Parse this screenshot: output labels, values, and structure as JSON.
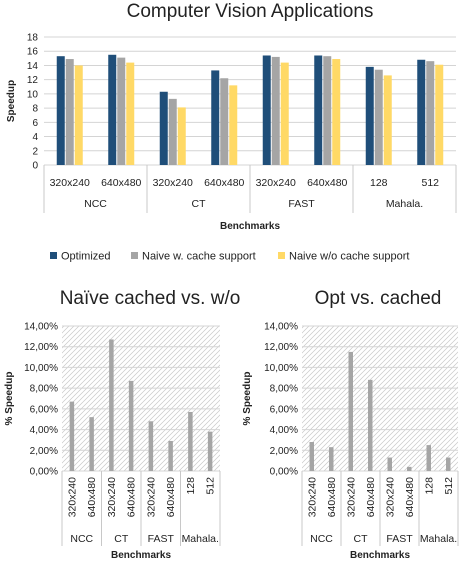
{
  "chart_data": [
    {
      "type": "bar",
      "title": "Computer Vision Applications",
      "xlabel": "Benchmarks",
      "ylabel": "Speedup",
      "ylim": [
        0,
        18
      ],
      "yticks": [
        "0",
        "2",
        "4",
        "6",
        "8",
        "10",
        "12",
        "14",
        "16",
        "18"
      ],
      "grid": true,
      "legend": "bottom",
      "groups": [
        "NCC",
        "CT",
        "FAST",
        "Mahala."
      ],
      "categories": [
        "320x240",
        "640x480",
        "320x240",
        "640x480",
        "320x240",
        "640x480",
        "128",
        "512"
      ],
      "series": [
        {
          "name": "Optimized",
          "color": "#1f4e79",
          "values": [
            15.3,
            15.5,
            10.3,
            13.3,
            15.4,
            15.4,
            13.8,
            14.8
          ]
        },
        {
          "name": "Naive w. cache support",
          "color": "#a5a5a5",
          "values": [
            14.9,
            15.1,
            9.3,
            12.2,
            15.2,
            15.3,
            13.4,
            14.6
          ]
        },
        {
          "name": "Naive w/o cache support",
          "color": "#ffd966",
          "values": [
            14.0,
            14.4,
            8.1,
            11.2,
            14.4,
            14.9,
            12.6,
            14.1
          ]
        }
      ]
    },
    {
      "type": "bar",
      "title": "Naïve cached vs. w/o",
      "xlabel": "Benchmarks",
      "ylabel": "% Speedup",
      "ylim": [
        0,
        14
      ],
      "yticks": [
        "0,00%",
        "2,00%",
        "4,00%",
        "6,00%",
        "8,00%",
        "10,00%",
        "12,00%",
        "14,00%"
      ],
      "grid": true,
      "groups": [
        "NCC",
        "CT",
        "FAST",
        "Mahala."
      ],
      "categories": [
        "320x240",
        "640x480",
        "320x240",
        "640x480",
        "320x240",
        "640x480",
        "128",
        "512"
      ],
      "color": "#a5a5a5",
      "values": [
        6.7,
        5.2,
        12.7,
        8.7,
        4.8,
        2.9,
        5.7,
        3.8
      ]
    },
    {
      "type": "bar",
      "title": "Opt vs. cached",
      "xlabel": "Benchmarks",
      "ylabel": "% Speedup",
      "ylim": [
        0,
        14
      ],
      "yticks": [
        "0,00%",
        "2,00%",
        "4,00%",
        "6,00%",
        "8,00%",
        "10,00%",
        "12,00%",
        "14,00%"
      ],
      "grid": true,
      "groups": [
        "NCC",
        "CT",
        "FAST",
        "Mahala."
      ],
      "categories": [
        "320x240",
        "640x480",
        "320x240",
        "640x480",
        "320x240",
        "640x480",
        "128",
        "512"
      ],
      "color": "#a5a5a5",
      "values": [
        2.8,
        2.3,
        11.5,
        8.8,
        1.3,
        0.4,
        2.5,
        1.3
      ]
    }
  ]
}
